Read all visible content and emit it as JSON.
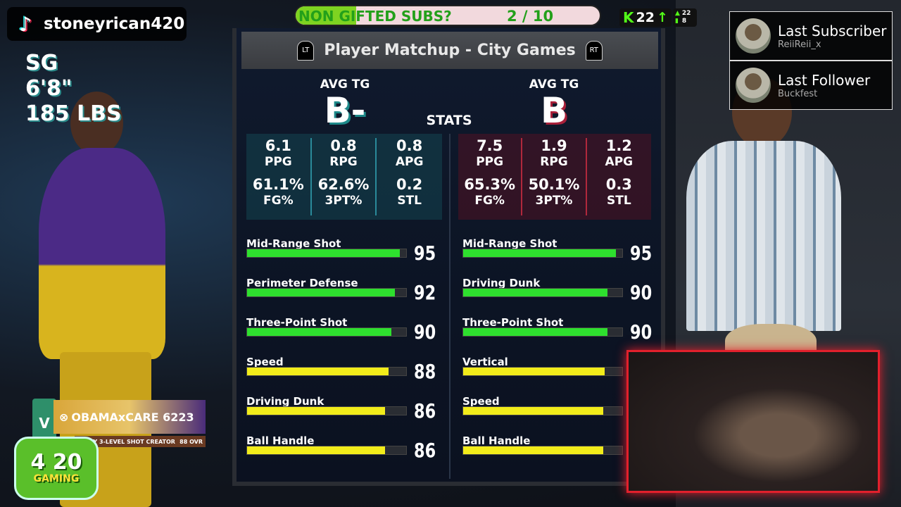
{
  "stream": {
    "tiktok_username": "stoneyrican420",
    "goal": {
      "label": "NON GIFTED SUBS?",
      "count": "2 / 10",
      "progress": 0.2
    },
    "kick": {
      "followers": "22"
    },
    "viewers": {
      "top": "22",
      "bottom": "8"
    },
    "last_subscriber": {
      "title": "Last Subscriber",
      "name": "ReiiReii_x"
    },
    "last_follower": {
      "title": "Last Follower",
      "name": "Buckfest"
    },
    "logo_text": {
      "number": "4 20",
      "word": "GAMING"
    }
  },
  "left_player": {
    "position": "SG",
    "height": "6'8\"",
    "weight": "185 LBS",
    "card": {
      "gamertag": "OBAMAxCARE 6223",
      "archetype": "2-WAY 3-LEVEL SHOT CREATOR",
      "ovr": "88",
      "ovr_label": "OVR",
      "badge": "V"
    }
  },
  "panel": {
    "title": "Player Matchup - City Games",
    "lt": "LT",
    "rt": "RT",
    "stats_label": "STATS",
    "left": {
      "grade_label": "AVG TG",
      "grade": "B-",
      "stats": [
        {
          "value": "6.1",
          "label": "PPG"
        },
        {
          "value": "0.8",
          "label": "RPG"
        },
        {
          "value": "0.8",
          "label": "APG"
        },
        {
          "value": "61.1%",
          "label": "FG%"
        },
        {
          "value": "62.6%",
          "label": "3PT%"
        },
        {
          "value": "0.2",
          "label": "STL"
        }
      ],
      "attributes": [
        {
          "name": "Mid-Range Shot",
          "value": 95,
          "color": "#2ee02e"
        },
        {
          "name": "Perimeter Defense",
          "value": 92,
          "color": "#2ee02e"
        },
        {
          "name": "Three-Point Shot",
          "value": 90,
          "color": "#2ee02e"
        },
        {
          "name": "Speed",
          "value": 88,
          "color": "#f2ec1a"
        },
        {
          "name": "Driving Dunk",
          "value": 86,
          "color": "#f2ec1a"
        },
        {
          "name": "Ball Handle",
          "value": 86,
          "color": "#f2ec1a"
        }
      ]
    },
    "right": {
      "grade_label": "AVG TG",
      "grade": "B",
      "stats": [
        {
          "value": "7.5",
          "label": "PPG"
        },
        {
          "value": "1.9",
          "label": "RPG"
        },
        {
          "value": "1.2",
          "label": "APG"
        },
        {
          "value": "65.3%",
          "label": "FG%"
        },
        {
          "value": "50.1%",
          "label": "3PT%"
        },
        {
          "value": "0.3",
          "label": "STL"
        }
      ],
      "attributes": [
        {
          "name": "Mid-Range Shot",
          "value": 95,
          "color": "#2ee02e"
        },
        {
          "name": "Driving Dunk",
          "value": 90,
          "color": "#2ee02e"
        },
        {
          "name": "Three-Point Shot",
          "value": 90,
          "color": "#2ee02e"
        },
        {
          "name": "Vertical",
          "value": 88,
          "color": "#f2ec1a"
        },
        {
          "name": "Speed",
          "value": 87,
          "color": "#f2ec1a"
        },
        {
          "name": "Ball Handle",
          "value": 87,
          "color": "#f2ec1a"
        }
      ]
    }
  }
}
